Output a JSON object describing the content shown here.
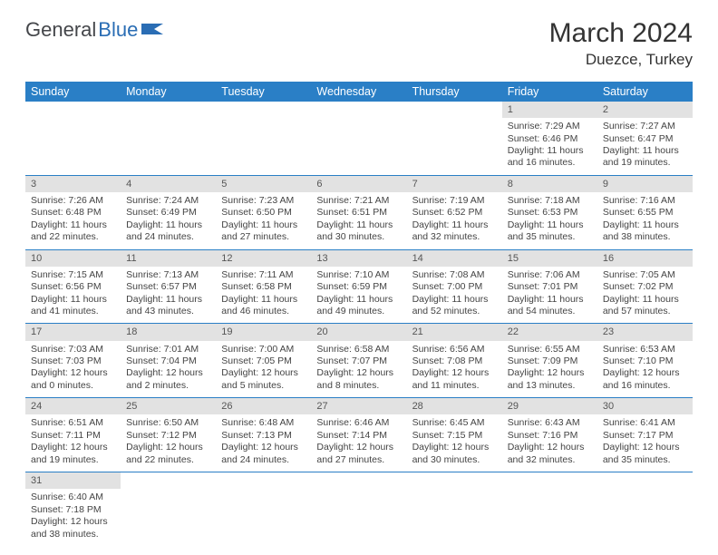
{
  "brand": {
    "part1": "General",
    "part2": "Blue"
  },
  "title": "March 2024",
  "location": "Duezce, Turkey",
  "colors": {
    "header_bg": "#2a7fc6",
    "header_fg": "#ffffff",
    "daynum_bg": "#e2e2e2",
    "row_divider": "#2a7fc6",
    "text": "#444444",
    "title_color": "#333333"
  },
  "weekdays": [
    "Sunday",
    "Monday",
    "Tuesday",
    "Wednesday",
    "Thursday",
    "Friday",
    "Saturday"
  ],
  "weeks": [
    {
      "nums": [
        "",
        "",
        "",
        "",
        "",
        "1",
        "2"
      ],
      "cells": [
        "",
        "",
        "",
        "",
        "",
        "Sunrise: 7:29 AM\nSunset: 6:46 PM\nDaylight: 11 hours and 16 minutes.",
        "Sunrise: 7:27 AM\nSunset: 6:47 PM\nDaylight: 11 hours and 19 minutes."
      ]
    },
    {
      "nums": [
        "3",
        "4",
        "5",
        "6",
        "7",
        "8",
        "9"
      ],
      "cells": [
        "Sunrise: 7:26 AM\nSunset: 6:48 PM\nDaylight: 11 hours and 22 minutes.",
        "Sunrise: 7:24 AM\nSunset: 6:49 PM\nDaylight: 11 hours and 24 minutes.",
        "Sunrise: 7:23 AM\nSunset: 6:50 PM\nDaylight: 11 hours and 27 minutes.",
        "Sunrise: 7:21 AM\nSunset: 6:51 PM\nDaylight: 11 hours and 30 minutes.",
        "Sunrise: 7:19 AM\nSunset: 6:52 PM\nDaylight: 11 hours and 32 minutes.",
        "Sunrise: 7:18 AM\nSunset: 6:53 PM\nDaylight: 11 hours and 35 minutes.",
        "Sunrise: 7:16 AM\nSunset: 6:55 PM\nDaylight: 11 hours and 38 minutes."
      ]
    },
    {
      "nums": [
        "10",
        "11",
        "12",
        "13",
        "14",
        "15",
        "16"
      ],
      "cells": [
        "Sunrise: 7:15 AM\nSunset: 6:56 PM\nDaylight: 11 hours and 41 minutes.",
        "Sunrise: 7:13 AM\nSunset: 6:57 PM\nDaylight: 11 hours and 43 minutes.",
        "Sunrise: 7:11 AM\nSunset: 6:58 PM\nDaylight: 11 hours and 46 minutes.",
        "Sunrise: 7:10 AM\nSunset: 6:59 PM\nDaylight: 11 hours and 49 minutes.",
        "Sunrise: 7:08 AM\nSunset: 7:00 PM\nDaylight: 11 hours and 52 minutes.",
        "Sunrise: 7:06 AM\nSunset: 7:01 PM\nDaylight: 11 hours and 54 minutes.",
        "Sunrise: 7:05 AM\nSunset: 7:02 PM\nDaylight: 11 hours and 57 minutes."
      ]
    },
    {
      "nums": [
        "17",
        "18",
        "19",
        "20",
        "21",
        "22",
        "23"
      ],
      "cells": [
        "Sunrise: 7:03 AM\nSunset: 7:03 PM\nDaylight: 12 hours and 0 minutes.",
        "Sunrise: 7:01 AM\nSunset: 7:04 PM\nDaylight: 12 hours and 2 minutes.",
        "Sunrise: 7:00 AM\nSunset: 7:05 PM\nDaylight: 12 hours and 5 minutes.",
        "Sunrise: 6:58 AM\nSunset: 7:07 PM\nDaylight: 12 hours and 8 minutes.",
        "Sunrise: 6:56 AM\nSunset: 7:08 PM\nDaylight: 12 hours and 11 minutes.",
        "Sunrise: 6:55 AM\nSunset: 7:09 PM\nDaylight: 12 hours and 13 minutes.",
        "Sunrise: 6:53 AM\nSunset: 7:10 PM\nDaylight: 12 hours and 16 minutes."
      ]
    },
    {
      "nums": [
        "24",
        "25",
        "26",
        "27",
        "28",
        "29",
        "30"
      ],
      "cells": [
        "Sunrise: 6:51 AM\nSunset: 7:11 PM\nDaylight: 12 hours and 19 minutes.",
        "Sunrise: 6:50 AM\nSunset: 7:12 PM\nDaylight: 12 hours and 22 minutes.",
        "Sunrise: 6:48 AM\nSunset: 7:13 PM\nDaylight: 12 hours and 24 minutes.",
        "Sunrise: 6:46 AM\nSunset: 7:14 PM\nDaylight: 12 hours and 27 minutes.",
        "Sunrise: 6:45 AM\nSunset: 7:15 PM\nDaylight: 12 hours and 30 minutes.",
        "Sunrise: 6:43 AM\nSunset: 7:16 PM\nDaylight: 12 hours and 32 minutes.",
        "Sunrise: 6:41 AM\nSunset: 7:17 PM\nDaylight: 12 hours and 35 minutes."
      ]
    },
    {
      "nums": [
        "31",
        "",
        "",
        "",
        "",
        "",
        ""
      ],
      "cells": [
        "Sunrise: 6:40 AM\nSunset: 7:18 PM\nDaylight: 12 hours and 38 minutes.",
        "",
        "",
        "",
        "",
        "",
        ""
      ]
    }
  ]
}
